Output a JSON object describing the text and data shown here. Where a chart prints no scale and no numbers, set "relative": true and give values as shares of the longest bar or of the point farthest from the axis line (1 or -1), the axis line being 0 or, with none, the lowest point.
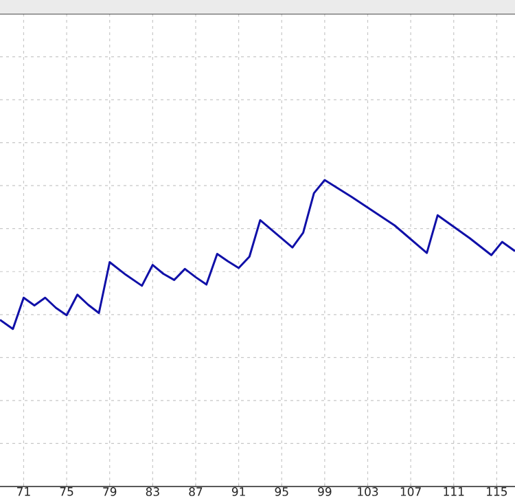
{
  "chart_data": {
    "type": "line",
    "relative": true,
    "color": "#1010a8",
    "grid": true,
    "line_style": "solid",
    "marker": "none",
    "xlim": [
      68.8,
      116.7
    ],
    "xticks": [
      71,
      75,
      79,
      83,
      87,
      91,
      95,
      99,
      103,
      107,
      111,
      115
    ],
    "x": [
      68.8,
      70,
      71,
      72,
      73,
      74,
      75,
      76,
      77,
      78,
      79,
      80.5,
      82,
      83,
      84,
      85,
      86,
      87,
      88,
      89,
      90,
      91,
      92,
      93,
      96,
      97,
      98,
      99,
      101.5,
      105.5,
      108.5,
      109.5,
      112.5,
      114.5,
      115.5,
      116.7
    ],
    "values": [
      0.544,
      0.514,
      0.616,
      0.591,
      0.616,
      0.583,
      0.559,
      0.626,
      0.593,
      0.566,
      0.732,
      0.691,
      0.655,
      0.723,
      0.694,
      0.674,
      0.71,
      0.683,
      0.659,
      0.759,
      0.735,
      0.713,
      0.75,
      0.869,
      0.78,
      0.828,
      0.957,
      1,
      0.945,
      0.852,
      0.762,
      0.885,
      0.81,
      0.755,
      0.798,
      0.768
    ]
  }
}
